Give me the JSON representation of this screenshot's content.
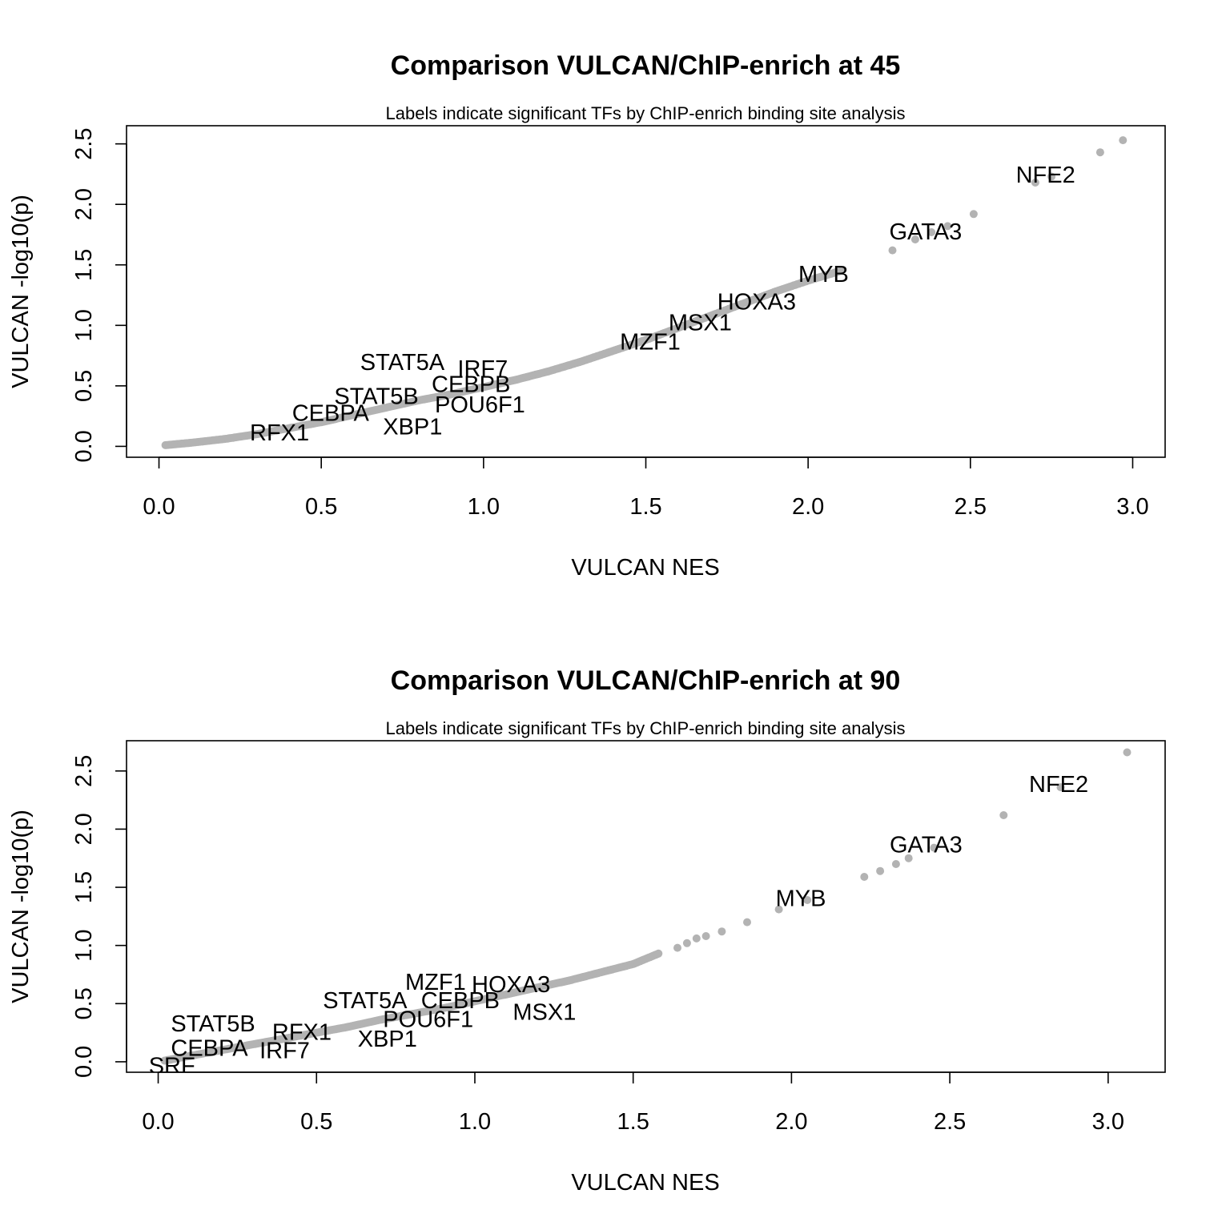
{
  "chart_data": [
    {
      "type": "scatter",
      "title": "Comparison VULCAN/ChIP-enrich at 45",
      "subtitle": "Labels indicate significant TFs by ChIP-enrich binding site analysis",
      "xlabel": "VULCAN NES",
      "ylabel": "VULCAN -log10(p)",
      "xlim": [
        -0.1,
        3.1
      ],
      "ylim": [
        -0.09,
        2.65
      ],
      "xticks": [
        0.0,
        0.5,
        1.0,
        1.5,
        2.0,
        2.5,
        3.0
      ],
      "xtick_labels": [
        "0.0",
        "0.5",
        "1.0",
        "1.5",
        "2.0",
        "2.5",
        "3.0"
      ],
      "yticks": [
        0.0,
        0.5,
        1.0,
        1.5,
        2.0,
        2.5
      ],
      "ytick_labels": [
        "0.0",
        "0.5",
        "1.0",
        "1.5",
        "2.0",
        "2.5"
      ],
      "grid": false,
      "point_color": "#b3b3b3",
      "curve": [
        [
          0.02,
          0.01
        ],
        [
          0.1,
          0.03
        ],
        [
          0.2,
          0.06
        ],
        [
          0.3,
          0.1
        ],
        [
          0.4,
          0.15
        ],
        [
          0.5,
          0.2
        ],
        [
          0.6,
          0.26
        ],
        [
          0.7,
          0.32
        ],
        [
          0.8,
          0.38
        ],
        [
          0.9,
          0.43
        ],
        [
          1.0,
          0.49
        ],
        [
          1.1,
          0.55
        ],
        [
          1.2,
          0.62
        ],
        [
          1.3,
          0.7
        ],
        [
          1.4,
          0.79
        ],
        [
          1.5,
          0.88
        ],
        [
          1.6,
          0.98
        ],
        [
          1.7,
          1.08
        ],
        [
          1.8,
          1.18
        ],
        [
          1.9,
          1.28
        ],
        [
          2.0,
          1.37
        ],
        [
          2.1,
          1.45
        ]
      ],
      "extra_points": [
        [
          2.26,
          1.62
        ],
        [
          2.33,
          1.71
        ],
        [
          2.38,
          1.77
        ],
        [
          2.43,
          1.82
        ],
        [
          2.51,
          1.92
        ],
        [
          2.7,
          2.18
        ],
        [
          2.75,
          2.23
        ],
        [
          2.9,
          2.43
        ],
        [
          2.97,
          2.53
        ]
      ],
      "labels": [
        {
          "text": "NFE2",
          "x": 2.64,
          "y": 2.18
        },
        {
          "text": "GATA3",
          "x": 2.25,
          "y": 1.71
        },
        {
          "text": "MYB",
          "x": 1.97,
          "y": 1.36
        },
        {
          "text": "HOXA3",
          "x": 1.72,
          "y": 1.13
        },
        {
          "text": "MSX1",
          "x": 1.57,
          "y": 0.96
        },
        {
          "text": "MZF1",
          "x": 1.42,
          "y": 0.8
        },
        {
          "text": "STAT5A",
          "x": 0.62,
          "y": 0.63
        },
        {
          "text": "IRF7",
          "x": 0.92,
          "y": 0.58
        },
        {
          "text": "CEBPB",
          "x": 0.84,
          "y": 0.45
        },
        {
          "text": "STAT5B",
          "x": 0.54,
          "y": 0.35
        },
        {
          "text": "POU6F1",
          "x": 0.85,
          "y": 0.28
        },
        {
          "text": "CEBPA",
          "x": 0.41,
          "y": 0.21
        },
        {
          "text": "XBP1",
          "x": 0.69,
          "y": 0.1
        },
        {
          "text": "RFX1",
          "x": 0.28,
          "y": 0.05
        }
      ]
    },
    {
      "type": "scatter",
      "title": "Comparison VULCAN/ChIP-enrich at 90",
      "subtitle": "Labels indicate significant TFs by ChIP-enrich binding site analysis",
      "xlabel": "VULCAN NES",
      "ylabel": "VULCAN -log10(p)",
      "xlim": [
        -0.1,
        3.18
      ],
      "ylim": [
        -0.09,
        2.76
      ],
      "xticks": [
        0.0,
        0.5,
        1.0,
        1.5,
        2.0,
        2.5,
        3.0
      ],
      "xtick_labels": [
        "0.0",
        "0.5",
        "1.0",
        "1.5",
        "2.0",
        "2.5",
        "3.0"
      ],
      "yticks": [
        0.0,
        0.5,
        1.0,
        1.5,
        2.0,
        2.5
      ],
      "ytick_labels": [
        "0.0",
        "0.5",
        "1.0",
        "1.5",
        "2.0",
        "2.5"
      ],
      "grid": false,
      "point_color": "#b3b3b3",
      "curve": [
        [
          0.02,
          0.01
        ],
        [
          0.1,
          0.05
        ],
        [
          0.2,
          0.1
        ],
        [
          0.3,
          0.15
        ],
        [
          0.4,
          0.2
        ],
        [
          0.5,
          0.25
        ],
        [
          0.6,
          0.3
        ],
        [
          0.7,
          0.36
        ],
        [
          0.8,
          0.41
        ],
        [
          0.9,
          0.46
        ],
        [
          1.0,
          0.52
        ],
        [
          1.1,
          0.58
        ],
        [
          1.2,
          0.64
        ],
        [
          1.3,
          0.7
        ],
        [
          1.4,
          0.77
        ],
        [
          1.5,
          0.84
        ],
        [
          1.58,
          0.93
        ]
      ],
      "extra_points": [
        [
          1.64,
          0.98
        ],
        [
          1.67,
          1.02
        ],
        [
          1.7,
          1.06
        ],
        [
          1.73,
          1.08
        ],
        [
          1.78,
          1.12
        ],
        [
          1.86,
          1.2
        ],
        [
          1.96,
          1.31
        ],
        [
          2.05,
          1.39
        ],
        [
          2.23,
          1.59
        ],
        [
          2.28,
          1.64
        ],
        [
          2.33,
          1.7
        ],
        [
          2.37,
          1.75
        ],
        [
          2.45,
          1.84
        ],
        [
          2.67,
          2.12
        ],
        [
          2.85,
          2.36
        ],
        [
          3.06,
          2.66
        ]
      ],
      "labels": [
        {
          "text": "NFE2",
          "x": 2.75,
          "y": 2.32
        },
        {
          "text": "GATA3",
          "x": 2.31,
          "y": 1.8
        },
        {
          "text": "MYB",
          "x": 1.95,
          "y": 1.34
        },
        {
          "text": "MZF1",
          "x": 0.78,
          "y": 0.62
        },
        {
          "text": "HOXA3",
          "x": 0.99,
          "y": 0.6
        },
        {
          "text": "STAT5A",
          "x": 0.52,
          "y": 0.46
        },
        {
          "text": "CEBPB",
          "x": 0.83,
          "y": 0.46
        },
        {
          "text": "MSX1",
          "x": 1.12,
          "y": 0.36
        },
        {
          "text": "POU6F1",
          "x": 0.71,
          "y": 0.3
        },
        {
          "text": "STAT5B",
          "x": 0.04,
          "y": 0.26
        },
        {
          "text": "RFX1",
          "x": 0.36,
          "y": 0.19
        },
        {
          "text": "XBP1",
          "x": 0.63,
          "y": 0.13
        },
        {
          "text": "CEBPA",
          "x": 0.04,
          "y": 0.05
        },
        {
          "text": "IRF7",
          "x": 0.32,
          "y": 0.03
        },
        {
          "text": "SRF",
          "x": -0.03,
          "y": -0.1
        }
      ]
    }
  ]
}
